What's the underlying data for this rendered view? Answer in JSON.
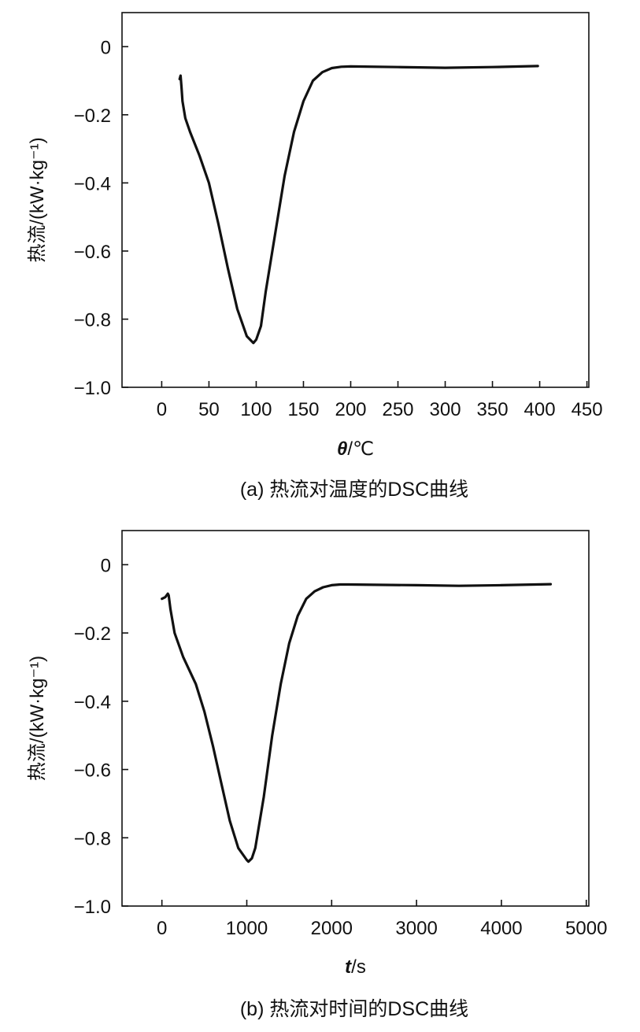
{
  "chart_data": [
    {
      "type": "line",
      "caption": "(a) 热流对温度的DSC曲线",
      "xlabel_symbol": "θ",
      "xlabel_unit": "/℃",
      "ylabel": "热流/(kW·kg⁻¹)",
      "xlim": [
        -42,
        452
      ],
      "ylim": [
        -1.0,
        0.1
      ],
      "xticks": [
        0,
        50,
        100,
        150,
        200,
        250,
        300,
        350,
        400,
        450
      ],
      "xtick_labels": [
        "0",
        "50",
        "100",
        "150",
        "200",
        "250",
        "300",
        "350",
        "400",
        "450"
      ],
      "yticks": [
        0,
        -0.2,
        -0.4,
        -0.6,
        -0.8,
        -1.0
      ],
      "ytick_labels": [
        "0",
        "−0.2",
        "−0.4",
        "−0.6",
        "−0.8",
        "−1.0"
      ],
      "grid": false,
      "series": [
        {
          "x": [
            19,
            20,
            21,
            22,
            25,
            30,
            40,
            50,
            60,
            70,
            80,
            90,
            97,
            100,
            105,
            110,
            120,
            130,
            140,
            150,
            160,
            170,
            180,
            190,
            200,
            250,
            300,
            350,
            398
          ],
          "y": [
            -0.095,
            -0.085,
            -0.12,
            -0.16,
            -0.21,
            -0.25,
            -0.32,
            -0.4,
            -0.52,
            -0.65,
            -0.77,
            -0.85,
            -0.87,
            -0.86,
            -0.82,
            -0.72,
            -0.55,
            -0.38,
            -0.25,
            -0.16,
            -0.1,
            -0.075,
            -0.063,
            -0.059,
            -0.058,
            -0.06,
            -0.062,
            -0.06,
            -0.057
          ]
        }
      ]
    },
    {
      "type": "line",
      "caption": "(b) 热流对时间的DSC曲线",
      "xlabel_symbol": "t",
      "xlabel_unit": "/s",
      "ylabel": "热流/(kW·kg⁻¹)",
      "xlim": [
        -470,
        5030
      ],
      "ylim": [
        -1.0,
        0.1
      ],
      "xticks": [
        0,
        1000,
        2000,
        3000,
        4000,
        5000
      ],
      "xtick_labels": [
        "0",
        "1000",
        "2000",
        "3000",
        "4000",
        "5000"
      ],
      "yticks": [
        0,
        -0.2,
        -0.4,
        -0.6,
        -0.8,
        -1.0
      ],
      "ytick_labels": [
        "0",
        "−0.2",
        "−0.4",
        "−0.6",
        "−0.8",
        "−1.0"
      ],
      "grid": false,
      "series": [
        {
          "x": [
            0,
            40,
            70,
            80,
            100,
            150,
            250,
            400,
            500,
            600,
            700,
            800,
            900,
            1000,
            1020,
            1060,
            1100,
            1200,
            1300,
            1400,
            1500,
            1600,
            1700,
            1800,
            1900,
            2000,
            2100,
            2200,
            2500,
            3000,
            3500,
            4000,
            4580
          ],
          "y": [
            -0.1,
            -0.095,
            -0.085,
            -0.09,
            -0.13,
            -0.2,
            -0.27,
            -0.35,
            -0.43,
            -0.53,
            -0.64,
            -0.75,
            -0.83,
            -0.865,
            -0.87,
            -0.86,
            -0.83,
            -0.68,
            -0.5,
            -0.35,
            -0.23,
            -0.15,
            -0.1,
            -0.078,
            -0.066,
            -0.06,
            -0.058,
            -0.058,
            -0.059,
            -0.06,
            -0.062,
            -0.06,
            -0.057
          ]
        }
      ]
    }
  ]
}
